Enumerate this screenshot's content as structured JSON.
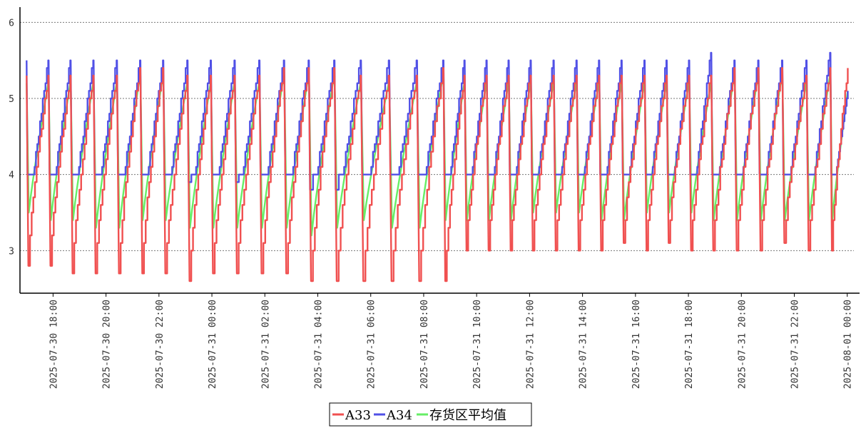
{
  "chart_data": {
    "type": "line",
    "title": "",
    "xlabel": "",
    "ylabel": "",
    "ylim": [
      2.45,
      6.2
    ],
    "y_ticks": [
      3,
      4,
      5,
      6
    ],
    "grid": "horizontal-dotted",
    "legend_position": "bottom-center",
    "x_range": [
      "2025-07-30 16:45",
      "2025-08-01 00:15"
    ],
    "x_ticks": [
      {
        "t": "2025-07-30 18:00",
        "label": "2025-07-30 18:00"
      },
      {
        "t": "2025-07-30 20:00",
        "label": "2025-07-30 20:00"
      },
      {
        "t": "2025-07-30 22:00",
        "label": "2025-07-30 22:00"
      },
      {
        "t": "2025-07-31 00:00",
        "label": "2025-07-31 00:00"
      },
      {
        "t": "2025-07-31 02:00",
        "label": "2025-07-31 02:00"
      },
      {
        "t": "2025-07-31 04:00",
        "label": "2025-07-31 04:00"
      },
      {
        "t": "2025-07-31 06:00",
        "label": "2025-07-31 06:00"
      },
      {
        "t": "2025-07-31 08:00",
        "label": "2025-07-31 08:00"
      },
      {
        "t": "2025-07-31 10:00",
        "label": "2025-07-31 10:00"
      },
      {
        "t": "2025-07-31 12:00",
        "label": "2025-07-31 12:00"
      },
      {
        "t": "2025-07-31 14:00",
        "label": "2025-07-31 14:00"
      },
      {
        "t": "2025-07-31 16:00",
        "label": "2025-07-31 16:00"
      },
      {
        "t": "2025-07-31 18:00",
        "label": "2025-07-31 18:00"
      },
      {
        "t": "2025-07-31 20:00",
        "label": "2025-07-31 20:00"
      },
      {
        "t": "2025-07-31 22:00",
        "label": "2025-07-31 22:00"
      },
      {
        "t": "2025-08-01 00:00",
        "label": "2025-08-01 00:00"
      }
    ],
    "cycle_starts": [
      "2025-07-30 17:00",
      "2025-07-30 17:50",
      "2025-07-30 18:40",
      "2025-07-30 19:32",
      "2025-07-30 20:25",
      "2025-07-30 21:18",
      "2025-07-30 22:10",
      "2025-07-30 23:05",
      "2025-07-30 23:58",
      "2025-07-31 00:52",
      "2025-07-31 01:48",
      "2025-07-31 02:44",
      "2025-07-31 03:40",
      "2025-07-31 04:38",
      "2025-07-31 05:38",
      "2025-07-31 06:42",
      "2025-07-31 07:45",
      "2025-07-31 08:45",
      "2025-07-31 09:33",
      "2025-07-31 10:23",
      "2025-07-31 11:13",
      "2025-07-31 12:03",
      "2025-07-31 12:55",
      "2025-07-31 13:47",
      "2025-07-31 14:38",
      "2025-07-31 15:29",
      "2025-07-31 16:21",
      "2025-07-31 17:11",
      "2025-07-31 18:02",
      "2025-07-31 18:52",
      "2025-07-31 19:45",
      "2025-07-31 20:39",
      "2025-07-31 21:33",
      "2025-07-31 22:28",
      "2025-07-31 23:22"
    ],
    "end_time": "2025-08-01 00:02",
    "series": [
      {
        "name": "A33",
        "color": "#f05050",
        "cycle_min": [
          2.8,
          2.8,
          2.7,
          2.7,
          2.7,
          2.7,
          2.7,
          2.6,
          2.7,
          2.7,
          2.7,
          2.7,
          2.6,
          2.6,
          2.6,
          2.6,
          2.6,
          2.6,
          3.0,
          3.0,
          3.0,
          3.0,
          3.0,
          3.0,
          3.0,
          3.1,
          3.0,
          3.1,
          3.0,
          3.0,
          3.0,
          3.0,
          3.1,
          3.0,
          3.0
        ],
        "cycle_max": [
          5.3,
          5.3,
          5.3,
          5.3,
          5.4,
          5.4,
          5.3,
          5.3,
          5.3,
          5.3,
          5.4,
          5.4,
          5.4,
          5.3,
          5.3,
          5.3,
          5.4,
          5.3,
          5.3,
          5.3,
          5.3,
          5.3,
          5.3,
          5.3,
          5.3,
          5.3,
          5.3,
          5.3,
          5.3,
          5.4,
          5.4,
          5.4,
          5.3,
          5.4,
          5.4
        ],
        "end_value": 5.4
      },
      {
        "name": "A34",
        "color": "#5050e6",
        "floor": 4.0,
        "cycle_min": [
          4.0,
          4.0,
          4.0,
          4.0,
          4.0,
          4.0,
          4.0,
          3.9,
          4.0,
          3.9,
          4.0,
          4.0,
          3.8,
          3.8,
          4.0,
          4.0,
          4.0,
          4.0,
          4.0,
          4.0,
          4.0,
          4.0,
          4.0,
          4.0,
          4.0,
          4.0,
          4.0,
          4.0,
          4.0,
          4.0,
          4.0,
          4.0,
          4.0,
          4.0,
          4.0
        ],
        "cycle_max": [
          5.5,
          5.5,
          5.5,
          5.5,
          5.5,
          5.5,
          5.5,
          5.5,
          5.5,
          5.5,
          5.5,
          5.5,
          5.5,
          5.5,
          5.5,
          5.5,
          5.5,
          5.5,
          5.5,
          5.5,
          5.5,
          5.5,
          5.5,
          5.5,
          5.5,
          5.5,
          5.5,
          5.5,
          5.6,
          5.5,
          5.5,
          5.5,
          5.5,
          5.6,
          5.6
        ],
        "end_value": 5.1
      },
      {
        "name": "存货区平均值",
        "color": "#66ee66",
        "cycle_min": [
          3.5,
          3.4,
          3.4,
          3.3,
          3.3,
          3.4,
          3.4,
          3.3,
          3.3,
          3.3,
          3.3,
          3.3,
          3.2,
          3.3,
          3.4,
          3.3,
          3.3,
          3.4,
          3.4,
          3.4,
          3.4,
          3.5,
          3.5,
          3.5,
          3.4,
          3.4,
          3.5,
          3.5,
          3.5,
          3.4,
          3.4,
          3.4,
          3.4,
          3.4,
          3.4
        ],
        "cycle_max": [
          5.2,
          5.2,
          5.2,
          5.2,
          5.3,
          5.3,
          5.2,
          5.2,
          5.2,
          5.2,
          5.3,
          5.3,
          5.3,
          5.2,
          5.2,
          5.2,
          5.3,
          5.2,
          5.2,
          5.2,
          5.2,
          5.2,
          5.2,
          5.2,
          5.2,
          5.2,
          5.2,
          5.2,
          5.2,
          5.3,
          5.3,
          5.3,
          5.2,
          5.3,
          5.3
        ],
        "end_value": 5.1
      }
    ],
    "legend": [
      "A33",
      "A34",
      "存货区平均值"
    ]
  }
}
